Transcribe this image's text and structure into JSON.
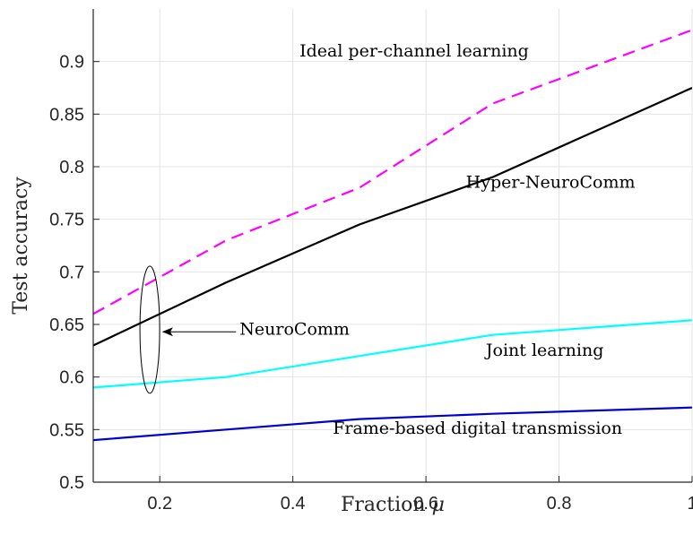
{
  "chart_data": {
    "type": "line",
    "xlabel": "Fraction μ",
    "xlabel_text": "Fraction",
    "xlabel_symbol": "μ",
    "ylabel": "Test accuracy",
    "xlim": [
      0.1,
      1
    ],
    "ylim": [
      0.5,
      0.95
    ],
    "xticks": [
      0.2,
      0.4,
      0.6,
      0.8,
      1
    ],
    "xtick_labels": [
      "0.2",
      "0.4",
      "0.6",
      "0.8",
      "1"
    ],
    "yticks": [
      0.5,
      0.55,
      0.6,
      0.65,
      0.7,
      0.75,
      0.8,
      0.85,
      0.9
    ],
    "ytick_labels": [
      "0.5",
      "0.55",
      "0.6",
      "0.65",
      "0.7",
      "0.75",
      "0.8",
      "0.85",
      "0.9"
    ],
    "grid": true,
    "series": [
      {
        "name": "Ideal per-channel learning",
        "color": "#ff00ff",
        "dash": "dashed",
        "x": [
          0.1,
          0.3,
          0.5,
          0.7,
          1.0
        ],
        "y": [
          0.66,
          0.73,
          0.78,
          0.86,
          0.93
        ]
      },
      {
        "name": "Hyper-NeuroComm",
        "color": "#000000",
        "dash": "solid",
        "x": [
          0.1,
          0.3,
          0.5,
          0.7,
          1.0
        ],
        "y": [
          0.63,
          0.69,
          0.745,
          0.79,
          0.875
        ]
      },
      {
        "name": "Joint learning",
        "color": "#00ffff",
        "dash": "solid",
        "x": [
          0.1,
          0.3,
          0.5,
          0.7,
          1.0
        ],
        "y": [
          0.59,
          0.6,
          0.62,
          0.64,
          0.654
        ]
      },
      {
        "name": "Frame-based digital transmission",
        "color": "#0000cd",
        "dash": "solid",
        "x": [
          0.1,
          0.3,
          0.5,
          0.7,
          1.0
        ],
        "y": [
          0.54,
          0.55,
          0.56,
          0.565,
          0.571
        ]
      }
    ],
    "annotations": [
      {
        "text": "Ideal per-channel learning",
        "x": 0.41,
        "y": 0.905
      },
      {
        "text": "Hyper-NeuroComm",
        "x": 0.66,
        "y": 0.78
      },
      {
        "text": "Joint learning",
        "x": 0.69,
        "y": 0.62
      },
      {
        "text": "Frame-based digital transmission",
        "x": 0.46,
        "y": 0.546
      },
      {
        "text": "NeuroComm",
        "x": 0.32,
        "y": 0.64
      }
    ],
    "neurocomm_marker": {
      "ellipse_center": [
        0.185,
        0.645
      ],
      "arrow_from": [
        0.32,
        0.643
      ],
      "arrow_to": [
        0.205,
        0.643
      ]
    }
  }
}
